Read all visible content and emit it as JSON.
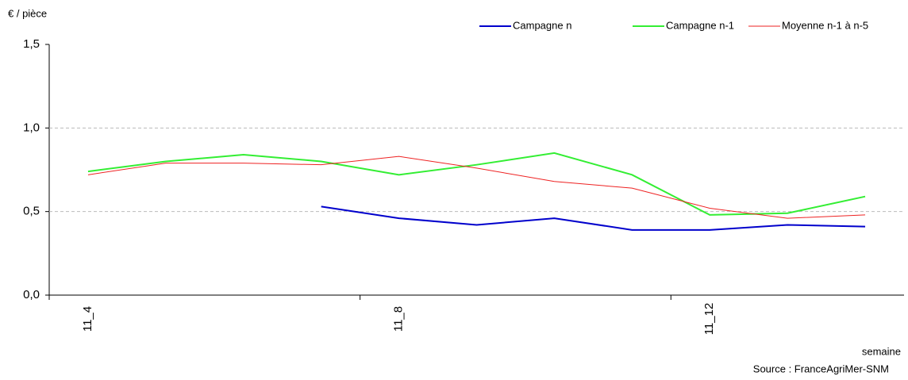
{
  "chart_data": {
    "type": "line",
    "y_label": "€ / pièce",
    "x_label": "semaine",
    "source": "Source : FranceAgriMer-SNM",
    "categories": [
      "11_4",
      null,
      null,
      null,
      "11_8",
      null,
      null,
      null,
      "11_12",
      null,
      null
    ],
    "series": [
      {
        "name": "Campagne n",
        "color": "#0000cc",
        "width": 2,
        "values": [
          null,
          null,
          null,
          0.53,
          0.46,
          0.42,
          0.46,
          0.39,
          0.39,
          0.42,
          0.41
        ]
      },
      {
        "name": "Campagne n-1",
        "color": "#33ee33",
        "width": 2,
        "values": [
          0.74,
          0.8,
          0.84,
          0.8,
          0.72,
          0.78,
          0.85,
          0.72,
          0.48,
          0.49,
          0.59
        ]
      },
      {
        "name": "Moyenne n-1 à n-5",
        "color": "#ee2222",
        "width": 1,
        "values": [
          0.72,
          0.79,
          0.79,
          0.78,
          0.83,
          0.76,
          0.68,
          0.64,
          0.52,
          0.46,
          0.48
        ]
      }
    ],
    "ylim": [
      0,
      1.5
    ],
    "yticks": [
      {
        "value": 0,
        "label": "0,0"
      },
      {
        "value": 0.5,
        "label": "0,5"
      },
      {
        "value": 1,
        "label": "1,0"
      },
      {
        "value": 1.5,
        "label": "1,5"
      }
    ],
    "grid": true
  }
}
